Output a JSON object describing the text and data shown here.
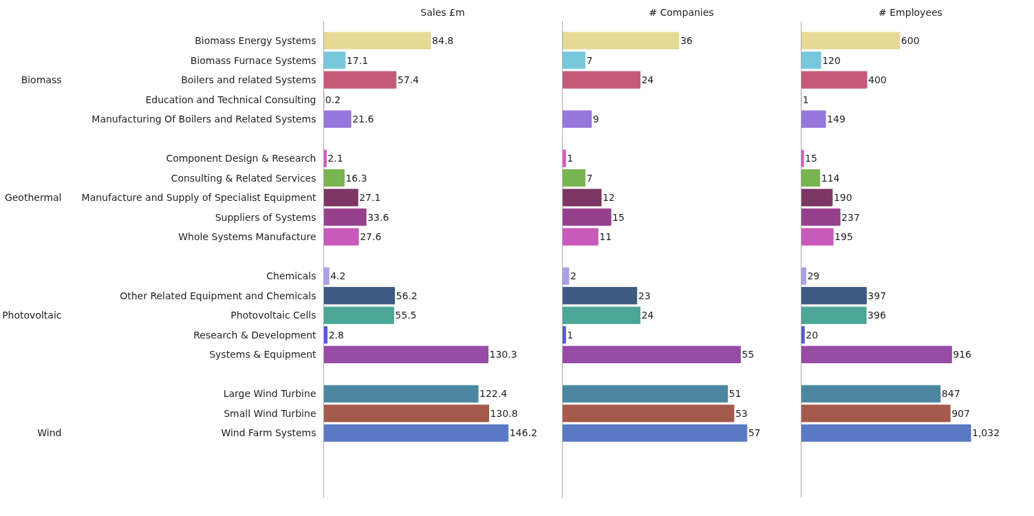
{
  "chart_data": [
    {
      "type": "bar",
      "orientation": "horizontal",
      "title": "Sales £m",
      "tick_labels": "y",
      "data_labels": true,
      "categories": [
        "Biomass Energy Systems",
        "Biomass Furnace Systems",
        "Boilers and related Systems",
        "Education and Technical Consulting",
        "Manufacturing Of Boilers and Related Systems",
        null,
        "Component Design & Research",
        "Consulting & Related Services",
        "Manufacture and Supply of Specialist Equipment",
        "Suppliers of Systems",
        "Whole Systems Manufacture",
        null,
        "Chemicals",
        "Other Related Equipment and Chemicals",
        "Photovoltaic Cells",
        "Research & Development",
        "Systems & Equipment",
        null,
        "Large Wind Turbine",
        "Small Wind Turbine",
        "Wind Farm Systems"
      ],
      "values": [
        84.8,
        17.1,
        57.4,
        0.2,
        21.6,
        null,
        2.1,
        16.3,
        27.1,
        33.6,
        27.6,
        null,
        4.2,
        56.2,
        55.5,
        2.8,
        130.3,
        null,
        122.4,
        130.8,
        146.2
      ],
      "colors": [
        "#e6d995",
        "#78c8dc",
        "#c55a78",
        "#c55a78",
        "#9678dc",
        null,
        "#d25ac8",
        "#78b450",
        "#7d3764",
        "#96418c",
        "#c85ab9",
        null,
        "#aaa0e6",
        "#3c5a82",
        "#4ba696",
        "#5a5ad2",
        "#964ba5",
        null,
        "#4b87a0",
        "#a55a4b",
        "#5a78c3"
      ],
      "annotations": [
        "Biomass",
        "Geothermal",
        "Photovoltaic",
        "Wind"
      ]
    },
    {
      "type": "bar",
      "orientation": "horizontal",
      "title": "# Companies",
      "tick_labels": false,
      "categories": [
        null,
        null,
        null,
        null,
        null,
        null,
        null,
        null,
        null,
        null,
        null,
        null,
        null,
        null,
        null,
        null,
        null,
        null,
        null,
        null,
        null
      ],
      "values": [
        36,
        7,
        24,
        0,
        9,
        null,
        1,
        7,
        12,
        15,
        11,
        null,
        2,
        23,
        24,
        1,
        55,
        null,
        51,
        53,
        57
      ],
      "value_labels": [
        "36",
        "7",
        "24",
        null,
        "9",
        null,
        "1",
        "7",
        "12",
        "15",
        "11",
        null,
        "2",
        "23",
        "24",
        "1",
        "55",
        null,
        "51",
        "53",
        "57"
      ],
      "colors": [
        "#e6d995",
        "#78c8dc",
        "#c55a78",
        "#c55a78",
        "#9678dc",
        null,
        "#d25ac8",
        "#78b450",
        "#7d3764",
        "#96418c",
        "#c85ab9",
        null,
        "#aaa0e6",
        "#3c5a82",
        "#4ba696",
        "#5a5ad2",
        "#964ba5",
        null,
        "#4b87a0",
        "#a55a4b",
        "#5a78c3"
      ]
    },
    {
      "type": "bar",
      "orientation": "horizontal",
      "title": "# Employees",
      "tick_labels": false,
      "categories": [
        null,
        null,
        null,
        null,
        null,
        null,
        null,
        null,
        null,
        null,
        null,
        null,
        null,
        null,
        null,
        null,
        null,
        null,
        null,
        null,
        null
      ],
      "values": [
        600,
        120,
        400,
        1,
        149,
        null,
        15,
        114,
        190,
        237,
        195,
        null,
        29,
        397,
        396,
        20,
        916,
        null,
        847,
        907,
        1032
      ],
      "value_labels": [
        "600",
        "120",
        "400",
        "1",
        "149",
        null,
        "15",
        "114",
        "190",
        "237",
        "195",
        null,
        "29",
        "397",
        "396",
        "20",
        "916",
        null,
        "847",
        "907",
        "1,032"
      ],
      "colors": [
        "#e6d995",
        "#78c8dc",
        "#c55a78",
        "#c55a78",
        "#9678dc",
        null,
        "#d25ac8",
        "#78b450",
        "#7d3764",
        "#96418c",
        "#c85ab9",
        null,
        "#aaa0e6",
        "#3c5a82",
        "#4ba696",
        "#5a5ad2",
        "#964ba5",
        null,
        "#4b87a0",
        "#a55a4b",
        "#5a78c3"
      ]
    }
  ]
}
